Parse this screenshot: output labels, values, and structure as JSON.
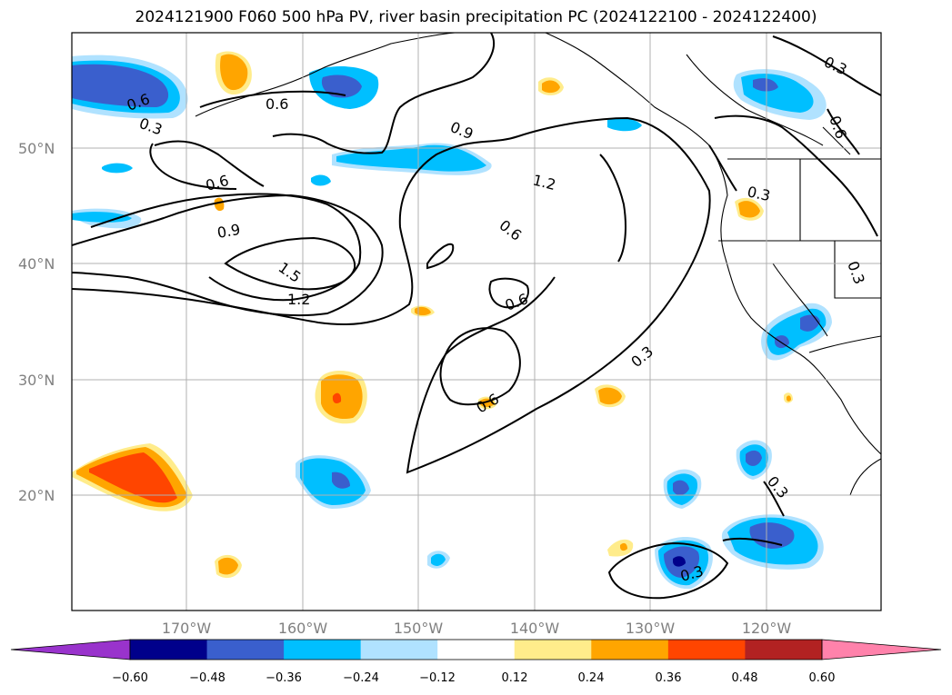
{
  "title": "2024121900 F060 500 hPa PV, river basin precipitation PC (2024122100 - 2024122400)",
  "latitude_labels": [
    "50°N",
    "40°N",
    "30°N",
    "20°N"
  ],
  "longitude_labels": [
    "170°W",
    "160°W",
    "150°W",
    "140°W",
    "130°W",
    "120°W"
  ],
  "contour_labels": [
    "0.3",
    "0.6",
    "0.6",
    "0.9",
    "1.2",
    "0.6",
    "0.9",
    "1.5",
    "1.2",
    "0.6",
    "0.6",
    "0.3",
    "0.6",
    "0.3",
    "0.3",
    "0.3",
    "0.6",
    "0.3",
    "0.3"
  ],
  "colorbar": {
    "tick_labels": [
      "−0.60",
      "−0.48",
      "−0.36",
      "−0.24",
      "−0.12",
      "0.12",
      "0.24",
      "0.36",
      "0.48",
      "0.60"
    ],
    "colors": [
      "#9933cc",
      "#00008b",
      "#3a5fcd",
      "#00bfff",
      "#b0e2ff",
      "#ffffff",
      "#ffec8b",
      "#ffa500",
      "#ff4500",
      "#b22222",
      "#ff82ab"
    ]
  }
}
